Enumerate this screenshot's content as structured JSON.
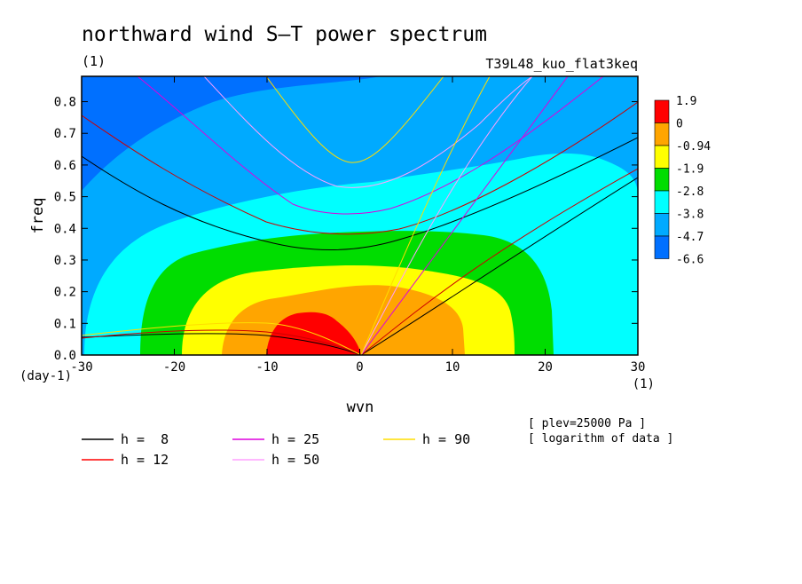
{
  "chart_data": {
    "type": "heatmap",
    "title": "northward wind S–T power spectrum",
    "subtitle_left": "(1)",
    "subtitle_right": "T39L48_kuo_flat3keq",
    "xlabel": "wvn",
    "ylabel": "freq",
    "x_unit": "(1)",
    "y_unit": "(day-1)",
    "xlim": [
      -30,
      30
    ],
    "ylim": [
      0,
      0.88
    ],
    "x_ticks": [
      -30,
      -20,
      -10,
      0,
      10,
      20,
      30
    ],
    "y_ticks": [
      0.0,
      0.1,
      0.2,
      0.3,
      0.4,
      0.5,
      0.6,
      0.7,
      0.8
    ],
    "x_tick_labels": [
      "-30",
      "-20",
      "-10",
      "0",
      "10",
      "20",
      "30"
    ],
    "y_tick_labels": [
      "0.0",
      "0.1",
      "0.2",
      "0.3",
      "0.4",
      "0.5",
      "0.6",
      "0.7",
      "0.8"
    ],
    "colorbar": {
      "labels": [
        "1.9",
        "0",
        "-0.94",
        "-1.9",
        "-2.8",
        "-3.8",
        "-4.7",
        "-6.6"
      ],
      "colors": [
        "#ff0000",
        "#ffa500",
        "#ffff00",
        "#00dd00",
        "#00ffff",
        "#00aaff",
        "#0070ff"
      ]
    },
    "notes": [
      "[ plev=25000 Pa ]",
      "[ logarithm of data ]"
    ],
    "dispersion_curves": [
      {
        "label": "h =  8",
        "color": "#000000"
      },
      {
        "label": "h = 12",
        "color": "#ff0000"
      },
      {
        "label": "h = 25",
        "color": "#dd00dd"
      },
      {
        "label": "h = 50",
        "color": "#ffa0ff"
      },
      {
        "label": "h = 90",
        "color": "#ffdd00"
      }
    ]
  }
}
